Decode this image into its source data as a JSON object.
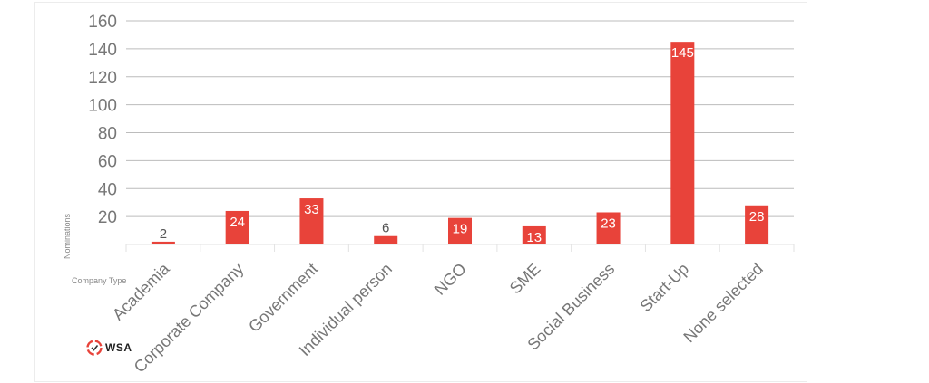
{
  "chart_data": {
    "type": "bar",
    "categories": [
      "Academia",
      "Corporate Company",
      "Government",
      "Individual person",
      "NGO",
      "SME",
      "Social Business",
      "Start-Up",
      "None selected"
    ],
    "values": [
      2,
      24,
      33,
      6,
      19,
      13,
      23,
      145,
      28
    ],
    "title": "",
    "xlabel": "Company Type",
    "ylabel": "Nominations",
    "ylim": [
      0,
      160
    ],
    "yticks": [
      20,
      40,
      60,
      80,
      100,
      120,
      140,
      160
    ],
    "grid": true,
    "colors": {
      "bar": "#e8433a",
      "label_inside": "#ffffff",
      "label_outside": "#555555",
      "grid": "#bcbcbc"
    }
  },
  "logo": {
    "text": "WSA",
    "icon": "wsa-logo-icon"
  }
}
